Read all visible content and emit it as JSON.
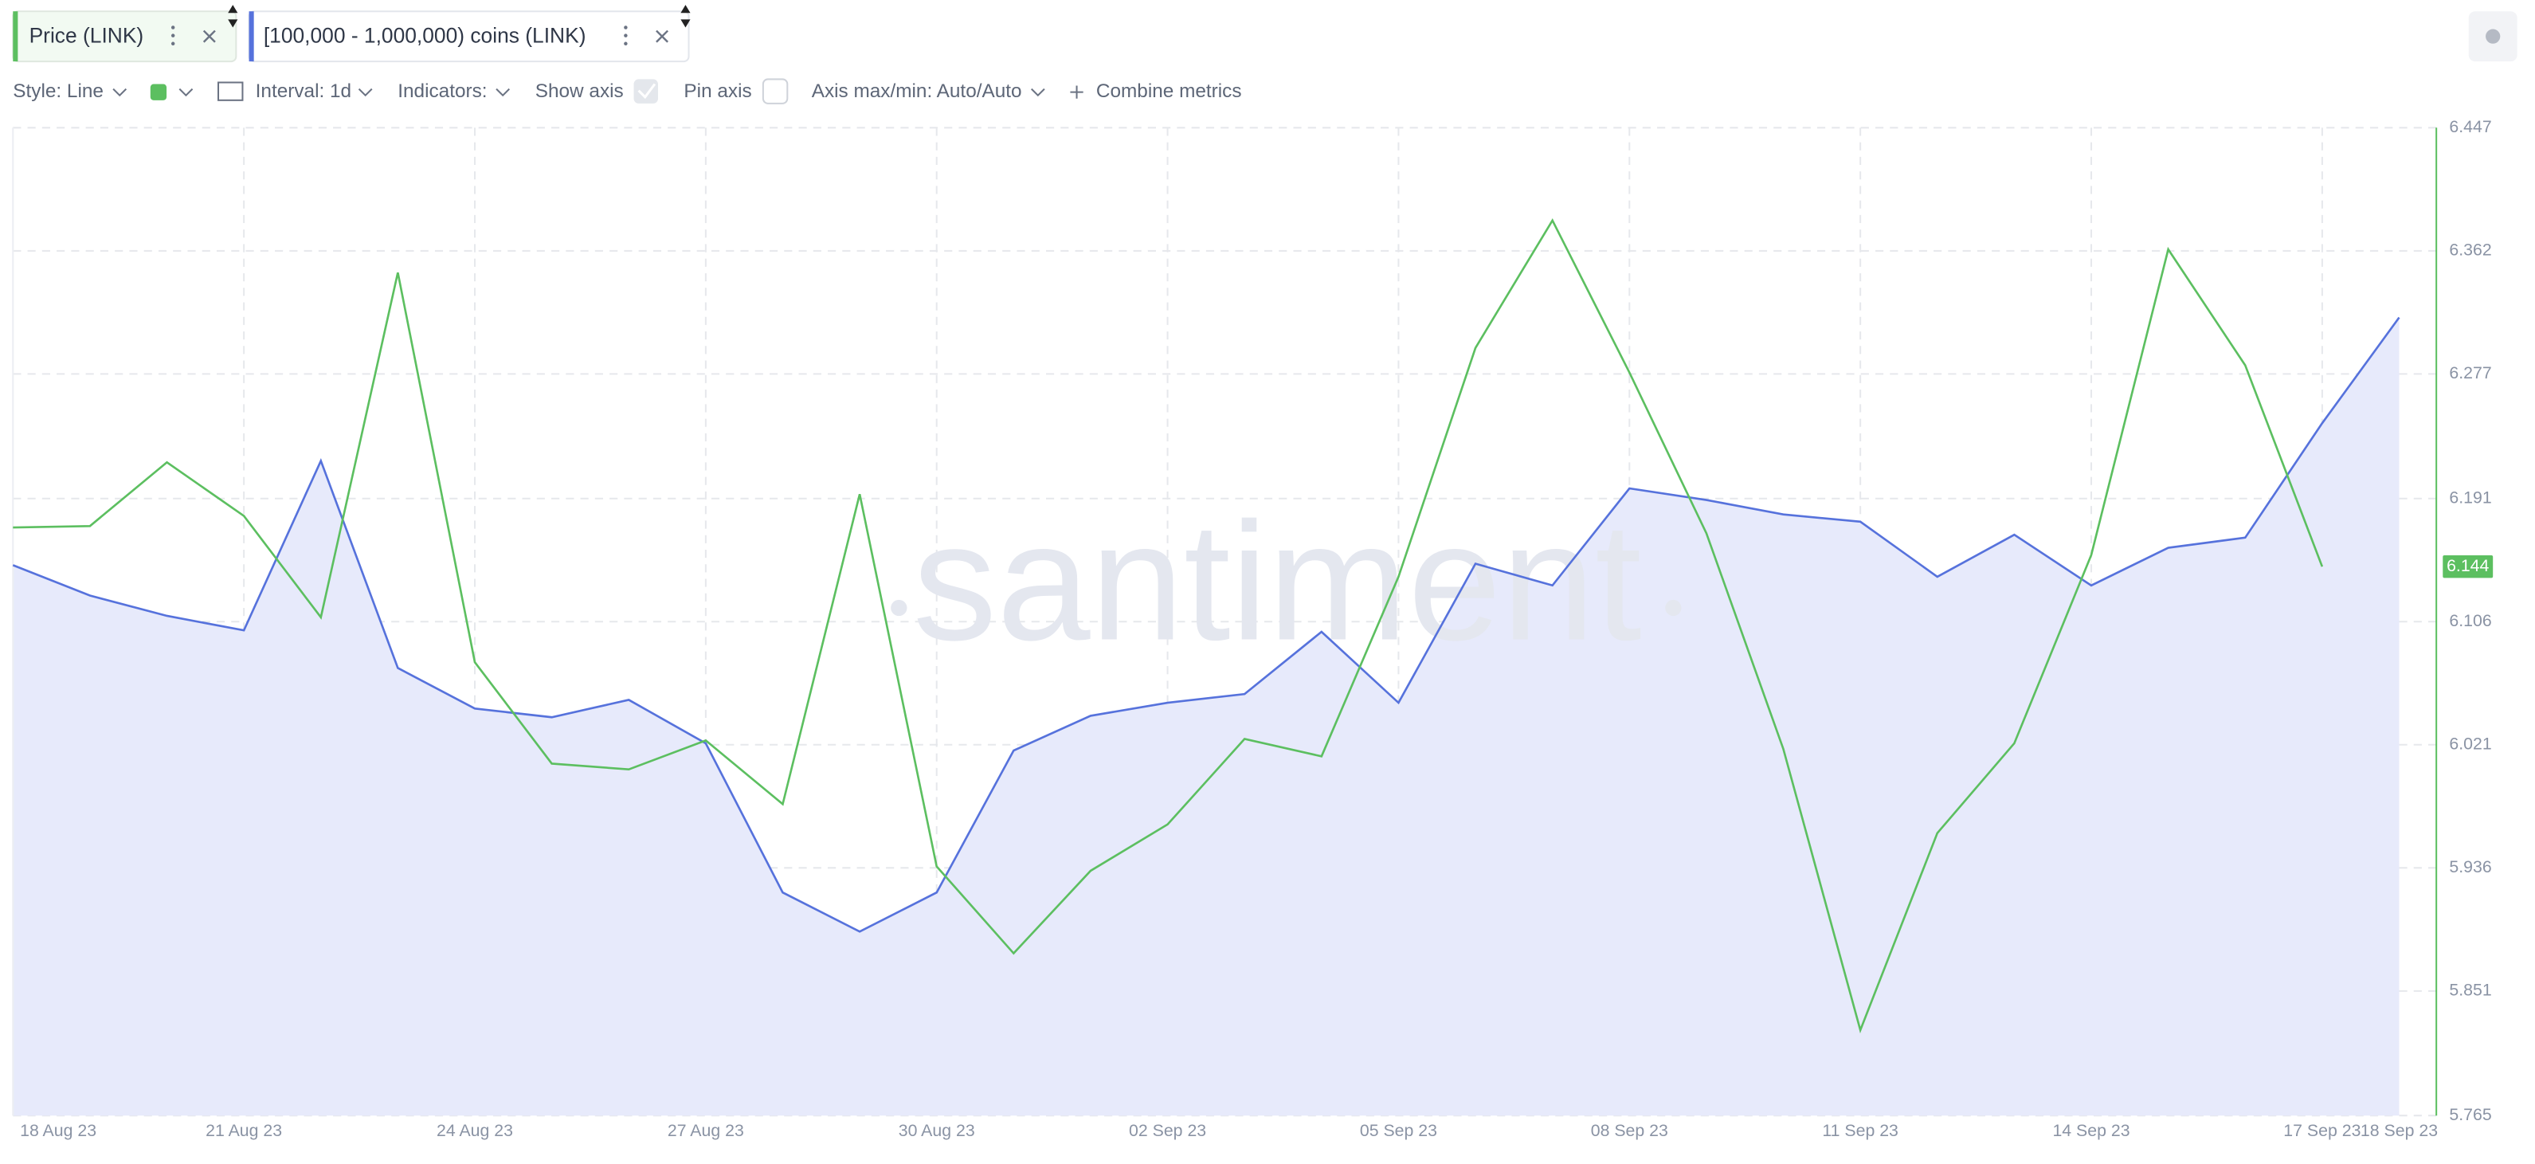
{
  "tabs": [
    "Price (LINK)",
    "[100,000 - 1,000,000) coins (LINK)"
  ],
  "toolbar": {
    "style": "Style: Line",
    "interval": "Interval: 1d",
    "indicators": "Indicators:",
    "show_axis": "Show axis",
    "pin_axis": "Pin axis",
    "axis_maxmin": "Axis max/min: Auto/Auto",
    "combine": "Combine metrics"
  },
  "chart_data": {
    "type": "line",
    "watermark": "santiment",
    "categories": [
      "18 Aug 23",
      null,
      null,
      "21 Aug 23",
      null,
      null,
      "24 Aug 23",
      null,
      null,
      "27 Aug 23",
      null,
      null,
      "30 Aug 23",
      null,
      null,
      "02 Sep 23",
      null,
      null,
      "05 Sep 23",
      null,
      null,
      "08 Sep 23",
      null,
      null,
      "11 Sep 23",
      null,
      null,
      "14 Sep 23",
      null,
      null,
      "17 Sep 23",
      "18 Sep 23"
    ],
    "series": [
      {
        "name": "Price (LINK)",
        "color": "#5cbf60",
        "axis": "y2",
        "values": [
          6.171,
          6.172,
          6.216,
          6.179,
          6.109,
          6.347,
          6.078,
          6.008,
          6.004,
          6.024,
          5.98,
          6.194,
          5.937,
          5.877,
          5.934,
          5.966,
          6.025,
          6.013,
          6.137,
          6.295,
          6.383,
          6.278,
          6.167,
          6.018,
          5.824,
          5.96,
          6.022,
          6.152,
          6.363,
          6.283,
          6.144,
          null
        ],
        "value_labels": [
          null,
          null,
          null,
          null,
          null,
          null,
          null,
          null,
          null,
          null,
          null,
          null,
          null,
          null,
          null,
          null,
          null,
          null,
          null,
          null,
          null,
          null,
          null,
          null,
          null,
          null,
          null,
          null,
          null,
          null,
          "6.144",
          null
        ]
      },
      {
        "name": "[100,000 - 1,000,000) coins (LINK)",
        "color": "#5672dc",
        "area_color": "#e7eafb",
        "axis": "y2",
        "values": [
          6.145,
          6.124,
          6.11,
          6.1,
          6.217,
          6.074,
          6.046,
          6.04,
          6.052,
          6.022,
          5.919,
          5.892,
          5.919,
          6.017,
          6.041,
          6.05,
          6.056,
          6.099,
          6.05,
          6.146,
          6.131,
          6.198,
          6.19,
          6.18,
          6.175,
          6.137,
          6.166,
          6.131,
          6.157,
          6.164,
          6.243,
          6.316
        ]
      }
    ],
    "y2lim": [
      5.765,
      6.447
    ],
    "y2ticks": [
      6.447,
      6.362,
      6.277,
      6.191,
      6.106,
      6.021,
      5.936,
      5.851,
      5.765
    ],
    "grid": true
  }
}
